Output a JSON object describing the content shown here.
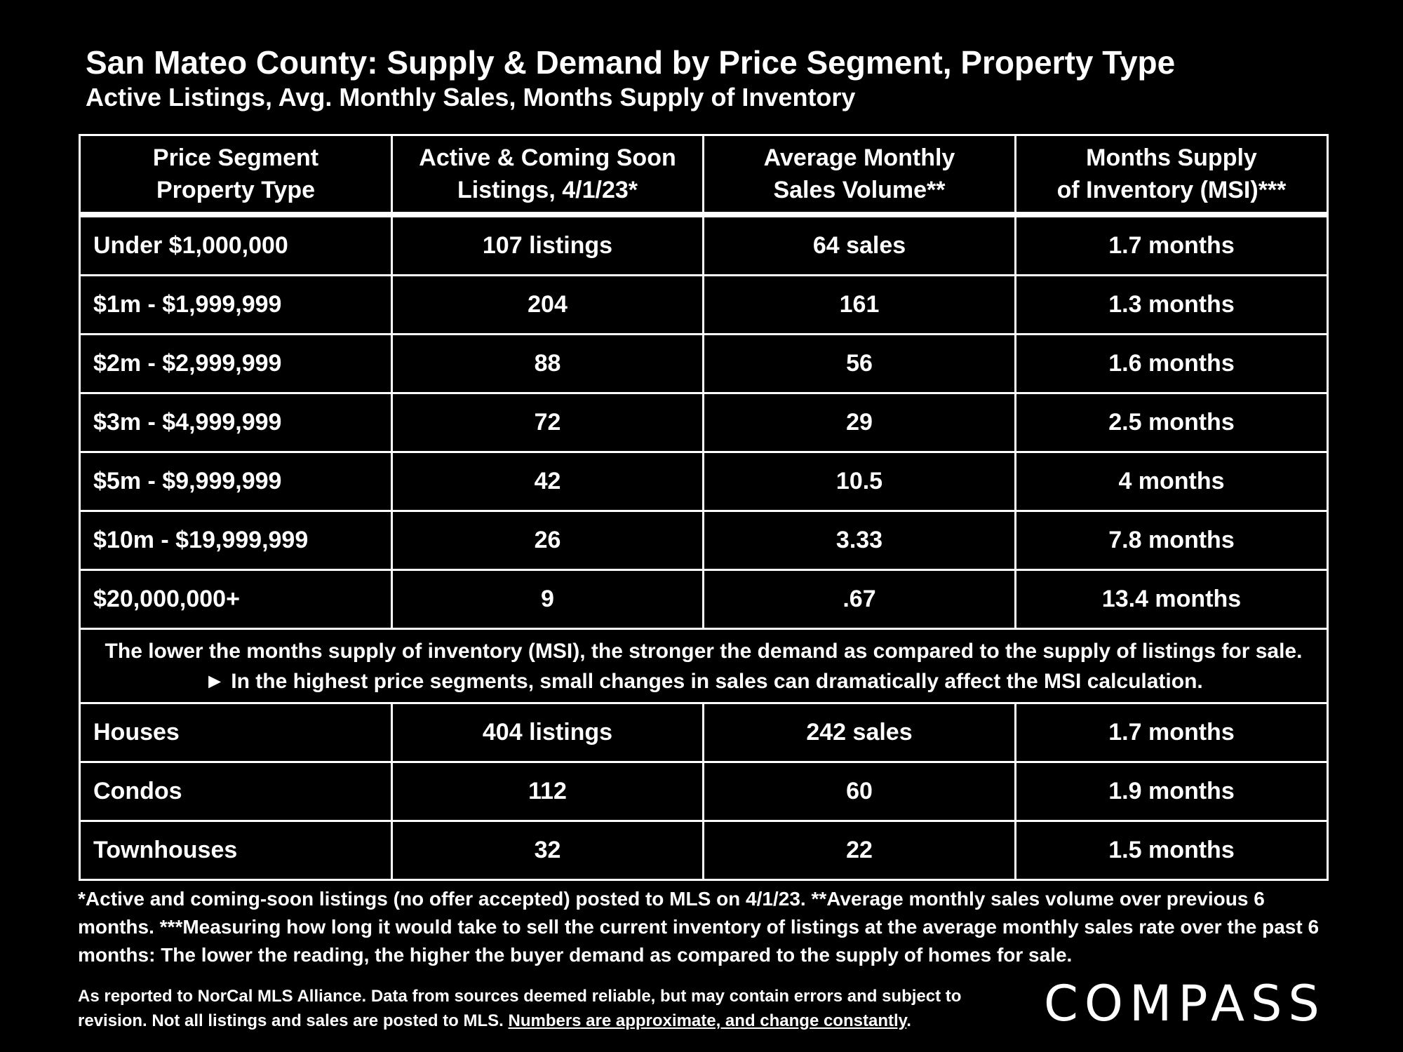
{
  "title": "San Mateo County: Supply & Demand by Price Segment, Property Type",
  "subtitle": "Active Listings, Avg. Monthly Sales, Months Supply of Inventory",
  "headers": [
    [
      "Price Segment",
      "Property Type"
    ],
    [
      "Active & Coming Soon",
      "Listings, 4/1/23*"
    ],
    [
      "Average Monthly",
      "Sales Volume**"
    ],
    [
      "Months Supply",
      "of Inventory (MSI)***"
    ]
  ],
  "price_rows": [
    [
      "Under $1,000,000",
      "107 listings",
      "64 sales",
      "1.7 months"
    ],
    [
      "$1m - $1,999,999",
      "204",
      "161",
      "1.3 months"
    ],
    [
      "$2m - $2,999,999",
      "88",
      "56",
      "1.6 months"
    ],
    [
      "$3m - $4,999,999",
      "72",
      "29",
      "2.5 months"
    ],
    [
      "$5m - $9,999,999",
      "42",
      "10.5",
      "4 months"
    ],
    [
      "$10m - $19,999,999",
      "26",
      "3.33",
      "7.8 months"
    ],
    [
      "$20,000,000+",
      "9",
      ".67",
      "13.4 months"
    ]
  ],
  "note": "The lower the months supply of inventory (MSI), the stronger the demand as compared to the supply of listings for sale. ► In the highest price segments, small changes in sales can dramatically affect the MSI calculation.",
  "type_rows": [
    [
      "Houses",
      "404 listings",
      "242 sales",
      "1.7 months"
    ],
    [
      "Condos",
      "112",
      "60",
      "1.9 months"
    ],
    [
      "Townhouses",
      "32",
      "22",
      "1.5 months"
    ]
  ],
  "footnote": "*Active and coming-soon listings (no offer accepted) posted to MLS on 4/1/23. **Average monthly sales volume over previous 6 months. ***Measuring how long it would take to sell the current inventory of listings at the average monthly sales rate over the past 6 months:  The lower the reading, the higher the buyer demand as compared to the supply of homes for sale.",
  "source_text": "As reported to NorCal MLS Alliance.  Data from sources deemed reliable, but may contain errors and subject to revision.  Not all listings and sales are posted to MLS. ",
  "source_underlined": "Numbers are approximate, and change constantly",
  "source_end": ".",
  "logo": "COMPASS"
}
